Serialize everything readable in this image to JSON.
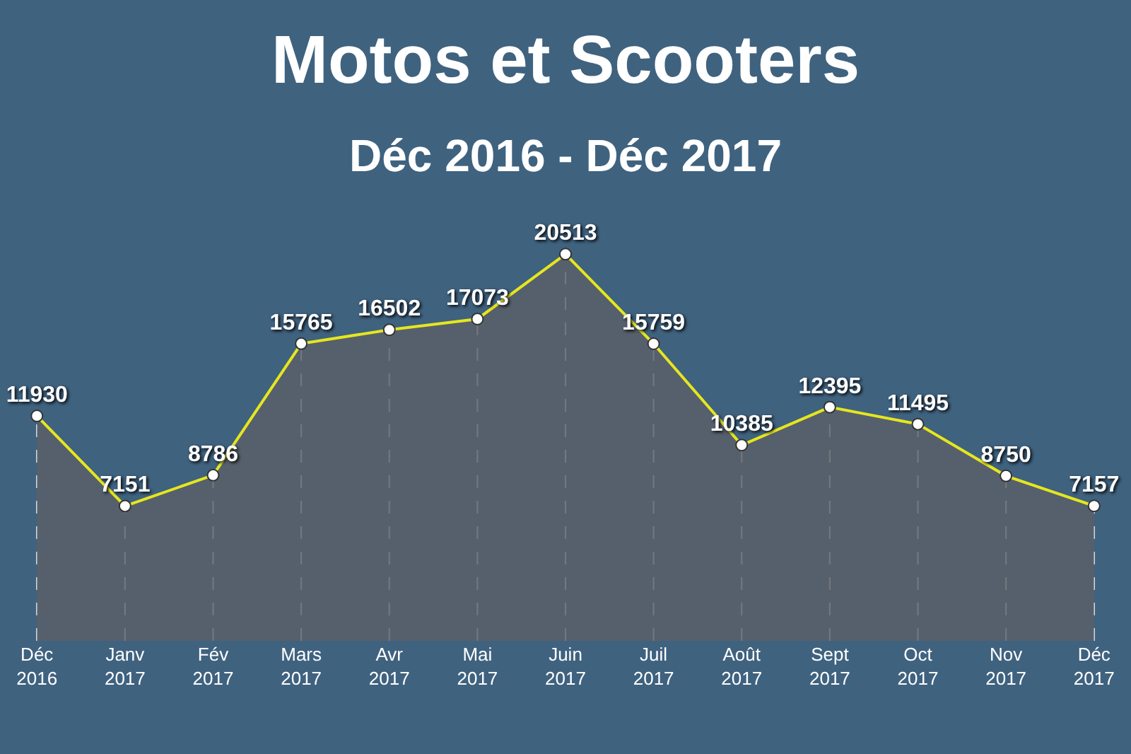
{
  "chart_data": {
    "type": "area",
    "title": "Motos et Scooters",
    "subtitle": "Déc 2016 - Déc 2017",
    "categories": [
      "Déc 2016",
      "Janv 2017",
      "Fév 2017",
      "Mars 2017",
      "Avr 2017",
      "Mai 2017",
      "Juin 2017",
      "Juil 2017",
      "Août 2017",
      "Sept 2017",
      "Oct 2017",
      "Nov 2017",
      "Déc 2017"
    ],
    "series": [
      {
        "color": "#e6e61e",
        "values": [
          11930,
          7151,
          8786,
          15765,
          16502,
          17073,
          20513,
          15759,
          10385,
          12395,
          11495,
          8750,
          7157
        ]
      }
    ],
    "data_labels": true,
    "marker": "circle",
    "grid": "x",
    "legend": false
  }
}
